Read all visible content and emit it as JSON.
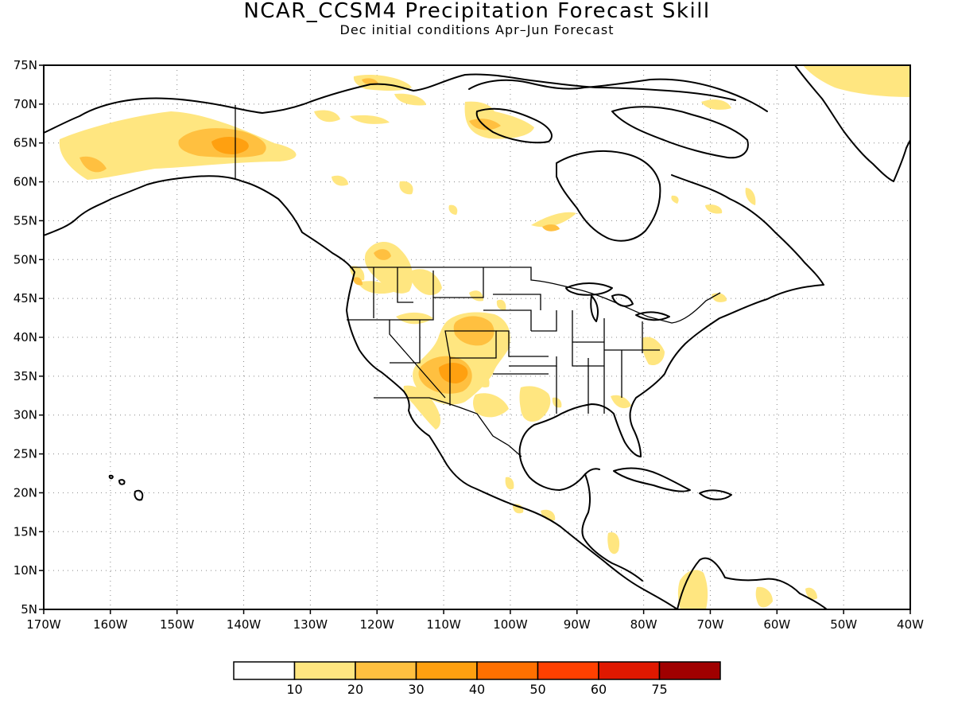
{
  "title": "NCAR_CCSM4 Precipitation Forecast Skill",
  "subtitle": "Dec initial conditions  Apr–Jun Forecast",
  "map": {
    "lon_range": [
      -170,
      -40
    ],
    "lat_range": [
      5,
      75
    ],
    "lon_ticks": [
      "170W",
      "160W",
      "150W",
      "140W",
      "130W",
      "120W",
      "110W",
      "100W",
      "90W",
      "80W",
      "70W",
      "60W",
      "50W",
      "40W"
    ],
    "lat_ticks": [
      "5N",
      "10N",
      "15N",
      "20N",
      "25N",
      "30N",
      "35N",
      "40N",
      "45N",
      "50N",
      "55N",
      "60N",
      "65N",
      "70N",
      "75N"
    ],
    "grid": "dotted",
    "variable": "precipitation forecast skill",
    "skill_regions": [
      {
        "region": "Central Alaska",
        "lon": -142,
        "lat": 64.7,
        "max_class": "30-40"
      },
      {
        "region": "Southwest US (AZ/NM)",
        "lon": -107.5,
        "lat": 36.2,
        "max_class": "30-40"
      },
      {
        "region": "Colorado",
        "lon": -104,
        "lat": 40.3,
        "max_class": "20-30"
      },
      {
        "region": "Pacific Northwest",
        "lon": -121,
        "lat": 47.5,
        "max_class": "20-30"
      },
      {
        "region": "Northern Canada",
        "lon": -104,
        "lat": 66.8,
        "max_class": "20-30"
      },
      {
        "region": "Texas",
        "lon": -95,
        "lat": 31,
        "max_class": "10-20"
      },
      {
        "region": "Greenland east coast",
        "lon": -42,
        "lat": 72.5,
        "max_class": "10-20"
      },
      {
        "region": "Northern South America",
        "lon": -72,
        "lat": 7,
        "max_class": "10-20"
      }
    ]
  },
  "colorbar": {
    "labels": [
      "10",
      "20",
      "30",
      "40",
      "50",
      "60",
      "75"
    ],
    "colors": [
      "#ffffff",
      "#ffe680",
      "#ffc040",
      "#ffa010",
      "#ff7000",
      "#ff4000",
      "#e01800",
      "#a00000"
    ]
  }
}
